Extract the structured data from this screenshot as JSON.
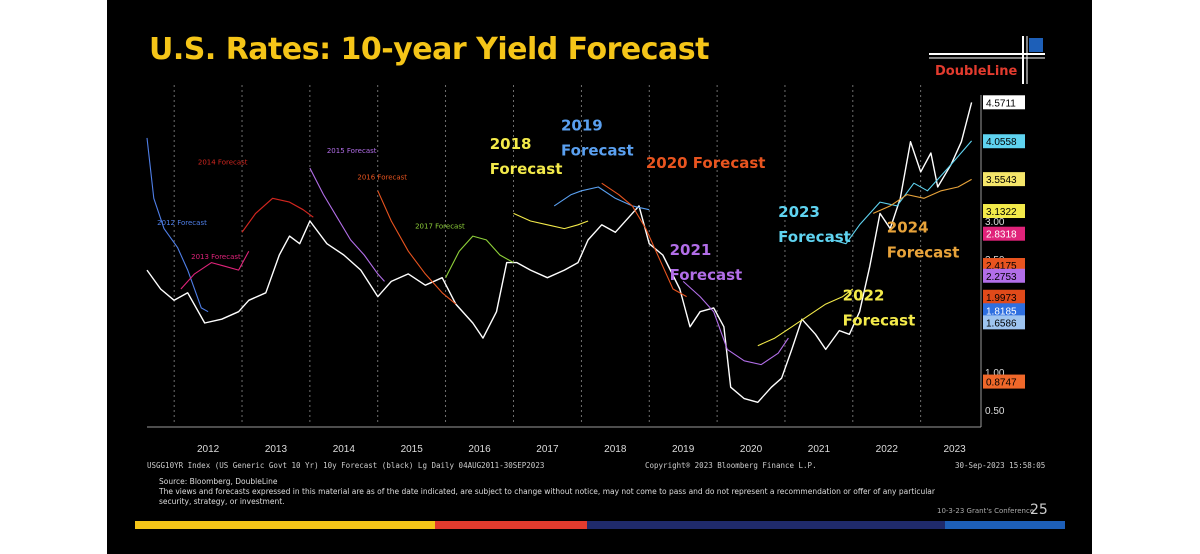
{
  "slide": {
    "title": "U.S. Rates: 10-year Yield Forecast",
    "logo_text": "DoubleLine",
    "source_line": "Source: Bloomberg, DoubleLine",
    "disclaimer_1": "The views and forecasts expressed in this material are as of the date indicated, are subject to change without notice, may not come to pass and do not represent a recommendation or offer of any particular",
    "disclaimer_2": "security, strategy, or investment.",
    "conference": "10-3-23 Grant's Conference",
    "page_number": "25",
    "colors": {
      "title": "#f5c518",
      "logo": "#e23b2e",
      "bar_yellow": "#f5c518",
      "bar_red": "#e23b2e",
      "bar_navy": "#1f2a6b",
      "bar_blue": "#1d5fb8"
    }
  },
  "chart_data": {
    "type": "line",
    "title": "",
    "bloomberg_caption_left": "USGG10YR Index (US Generic Govt 10 Yr) 10y Forecast (black) Lg  Daily 04AUG2011-30SEP2023",
    "bloomberg_caption_center": "Copyright® 2023 Bloomberg Finance L.P.",
    "bloomberg_caption_right": "30-Sep-2023 15:58:05",
    "x_tick_labels": [
      "2012",
      "2013",
      "2014",
      "2015",
      "2016",
      "2017",
      "2018",
      "2019",
      "2020",
      "2021",
      "2022",
      "2023"
    ],
    "y_tick_labels": [
      "3.00",
      "2.50",
      "1.00",
      "0.50"
    ],
    "ylim": [
      0.3,
      4.8
    ],
    "xlim": [
      2011.6,
      2023.8
    ],
    "grid": "vertical dashed at year boundaries",
    "last_values": [
      {
        "label": "4.5711",
        "bg": "#ffffff",
        "fg": "#000000",
        "y": 4.5711
      },
      {
        "label": "4.0558",
        "bg": "#5fd3f0",
        "fg": "#000000",
        "y": 4.0558
      },
      {
        "label": "3.5543",
        "bg": "#f5e66a",
        "fg": "#000000",
        "y": 3.5543
      },
      {
        "label": "3.1322",
        "bg": "#f3ea4a",
        "fg": "#000000",
        "y": 3.1322
      },
      {
        "label": "2.8318",
        "bg": "#e0237a",
        "fg": "#ffffff",
        "y": 2.8318
      },
      {
        "label": "2.4175",
        "bg": "#e8541f",
        "fg": "#000000",
        "y": 2.4175
      },
      {
        "label": "2.2753",
        "bg": "#b26ee8",
        "fg": "#000000",
        "y": 2.2753
      },
      {
        "label": "1.9973",
        "bg": "#e04a1a",
        "fg": "#000000",
        "y": 1.9973
      },
      {
        "label": "1.8185",
        "bg": "#2e6fe0",
        "fg": "#ffffff",
        "y": 1.8185
      },
      {
        "label": "1.6586",
        "bg": "#9ec4f0",
        "fg": "#000000",
        "y": 1.6586
      },
      {
        "label": "0.8747",
        "bg": "#f0682a",
        "fg": "#000000",
        "y": 0.8747
      }
    ],
    "annotations": [
      {
        "text": "2012 Forecast",
        "color": "#4f7fe8",
        "x": 2011.75,
        "y": 2.95,
        "size": 7
      },
      {
        "text": "2013 Forecast",
        "color": "#e0237a",
        "x": 2012.25,
        "y": 2.5,
        "size": 7
      },
      {
        "text": "2014 Forecast",
        "color": "#d2261f",
        "x": 2012.35,
        "y": 3.75,
        "size": 7
      },
      {
        "text": "2015 Forecast",
        "color": "#b26ee8",
        "x": 2014.25,
        "y": 3.9,
        "size": 7
      },
      {
        "text": "2016 Forecast",
        "color": "#e8541f",
        "x": 2014.7,
        "y": 3.55,
        "size": 7
      },
      {
        "text": "2017 Forecast",
        "color": "#8fd13a",
        "x": 2015.55,
        "y": 2.9,
        "size": 7
      },
      {
        "text": "2018",
        "color": "#f3ea4a",
        "x": 2016.65,
        "y": 3.95,
        "size": 15
      },
      {
        "text": "Forecast",
        "color": "#f3ea4a",
        "x": 2016.65,
        "y": 3.62,
        "size": 15
      },
      {
        "text": "2019",
        "color": "#5aa0f0",
        "x": 2017.7,
        "y": 4.2,
        "size": 15
      },
      {
        "text": "Forecast",
        "color": "#5aa0f0",
        "x": 2017.7,
        "y": 3.87,
        "size": 15
      },
      {
        "text": "2020 Forecast",
        "color": "#e8541f",
        "x": 2018.95,
        "y": 3.7,
        "size": 15
      },
      {
        "text": "2021",
        "color": "#b26ee8",
        "x": 2019.3,
        "y": 2.55,
        "size": 15
      },
      {
        "text": "Forecast",
        "color": "#b26ee8",
        "x": 2019.3,
        "y": 2.22,
        "size": 15
      },
      {
        "text": "2023",
        "color": "#5fd3f0",
        "x": 2020.9,
        "y": 3.05,
        "size": 15
      },
      {
        "text": "Forecast",
        "color": "#5fd3f0",
        "x": 2020.9,
        "y": 2.72,
        "size": 15
      },
      {
        "text": "2024",
        "color": "#e8a33a",
        "x": 2022.5,
        "y": 2.85,
        "size": 15
      },
      {
        "text": "Forecast",
        "color": "#e8a33a",
        "x": 2022.5,
        "y": 2.52,
        "size": 15
      },
      {
        "text": "2022",
        "color": "#f3ea4a",
        "x": 2021.85,
        "y": 1.95,
        "size": 15
      },
      {
        "text": "Forecast",
        "color": "#f3ea4a",
        "x": 2021.85,
        "y": 1.62,
        "size": 15
      }
    ],
    "series": [
      {
        "color": "#ffffff",
        "width": 1.4,
        "points": [
          [
            2011.6,
            2.35
          ],
          [
            2011.8,
            2.1
          ],
          [
            2012.0,
            1.95
          ],
          [
            2012.2,
            2.05
          ],
          [
            2012.45,
            1.65
          ],
          [
            2012.7,
            1.7
          ],
          [
            2012.95,
            1.8
          ],
          [
            2013.1,
            1.95
          ],
          [
            2013.35,
            2.05
          ],
          [
            2013.55,
            2.55
          ],
          [
            2013.7,
            2.8
          ],
          [
            2013.85,
            2.7
          ],
          [
            2014.0,
            3.0
          ],
          [
            2014.25,
            2.7
          ],
          [
            2014.5,
            2.55
          ],
          [
            2014.75,
            2.35
          ],
          [
            2015.0,
            2.0
          ],
          [
            2015.2,
            2.2
          ],
          [
            2015.45,
            2.3
          ],
          [
            2015.7,
            2.15
          ],
          [
            2015.95,
            2.25
          ],
          [
            2016.15,
            1.9
          ],
          [
            2016.4,
            1.65
          ],
          [
            2016.55,
            1.45
          ],
          [
            2016.75,
            1.8
          ],
          [
            2016.9,
            2.45
          ],
          [
            2017.05,
            2.45
          ],
          [
            2017.25,
            2.35
          ],
          [
            2017.5,
            2.25
          ],
          [
            2017.75,
            2.35
          ],
          [
            2017.95,
            2.45
          ],
          [
            2018.1,
            2.75
          ],
          [
            2018.3,
            2.95
          ],
          [
            2018.5,
            2.85
          ],
          [
            2018.7,
            3.05
          ],
          [
            2018.85,
            3.2
          ],
          [
            2019.0,
            2.7
          ],
          [
            2019.2,
            2.55
          ],
          [
            2019.45,
            2.1
          ],
          [
            2019.6,
            1.6
          ],
          [
            2019.75,
            1.8
          ],
          [
            2019.95,
            1.85
          ],
          [
            2020.1,
            1.6
          ],
          [
            2020.2,
            0.8
          ],
          [
            2020.4,
            0.65
          ],
          [
            2020.6,
            0.6
          ],
          [
            2020.8,
            0.8
          ],
          [
            2020.95,
            0.92
          ],
          [
            2021.1,
            1.3
          ],
          [
            2021.25,
            1.7
          ],
          [
            2021.45,
            1.5
          ],
          [
            2021.6,
            1.3
          ],
          [
            2021.8,
            1.55
          ],
          [
            2021.95,
            1.5
          ],
          [
            2022.1,
            1.8
          ],
          [
            2022.25,
            2.4
          ],
          [
            2022.4,
            3.1
          ],
          [
            2022.55,
            2.9
          ],
          [
            2022.7,
            3.3
          ],
          [
            2022.85,
            4.05
          ],
          [
            2023.0,
            3.65
          ],
          [
            2023.15,
            3.9
          ],
          [
            2023.25,
            3.45
          ],
          [
            2023.45,
            3.75
          ],
          [
            2023.6,
            4.05
          ],
          [
            2023.75,
            4.57
          ]
        ]
      },
      {
        "color": "#4f7fe8",
        "width": 1.1,
        "points": [
          [
            2011.6,
            4.1
          ],
          [
            2011.7,
            3.3
          ],
          [
            2011.85,
            2.9
          ],
          [
            2012.05,
            2.65
          ],
          [
            2012.2,
            2.35
          ],
          [
            2012.4,
            1.85
          ],
          [
            2012.5,
            1.8
          ]
        ]
      },
      {
        "color": "#e0237a",
        "width": 1.1,
        "points": [
          [
            2012.1,
            2.1
          ],
          [
            2012.3,
            2.3
          ],
          [
            2012.55,
            2.45
          ],
          [
            2012.75,
            2.4
          ],
          [
            2012.95,
            2.35
          ],
          [
            2013.1,
            2.6
          ]
        ]
      },
      {
        "color": "#d2261f",
        "width": 1.2,
        "points": [
          [
            2013.0,
            2.85
          ],
          [
            2013.2,
            3.1
          ],
          [
            2013.45,
            3.3
          ],
          [
            2013.7,
            3.25
          ],
          [
            2013.9,
            3.15
          ],
          [
            2014.05,
            3.05
          ]
        ]
      },
      {
        "color": "#b26ee8",
        "width": 1.1,
        "points": [
          [
            2014.0,
            3.7
          ],
          [
            2014.2,
            3.35
          ],
          [
            2014.4,
            3.05
          ],
          [
            2014.6,
            2.75
          ],
          [
            2014.8,
            2.55
          ],
          [
            2015.0,
            2.3
          ],
          [
            2015.1,
            2.2
          ]
        ]
      },
      {
        "color": "#e8541f",
        "width": 1.1,
        "points": [
          [
            2015.0,
            3.4
          ],
          [
            2015.2,
            3.0
          ],
          [
            2015.45,
            2.6
          ],
          [
            2015.7,
            2.3
          ],
          [
            2015.95,
            2.05
          ],
          [
            2016.15,
            1.9
          ]
        ]
      },
      {
        "color": "#8fd13a",
        "width": 1.1,
        "points": [
          [
            2016.0,
            2.25
          ],
          [
            2016.2,
            2.6
          ],
          [
            2016.4,
            2.8
          ],
          [
            2016.6,
            2.75
          ],
          [
            2016.8,
            2.55
          ],
          [
            2017.0,
            2.45
          ]
        ]
      },
      {
        "color": "#f3ea4a",
        "width": 1.1,
        "points": [
          [
            2017.0,
            3.1
          ],
          [
            2017.25,
            3.0
          ],
          [
            2017.5,
            2.95
          ],
          [
            2017.75,
            2.9
          ],
          [
            2017.95,
            2.95
          ],
          [
            2018.1,
            3.0
          ]
        ]
      },
      {
        "color": "#5aa0f0",
        "width": 1.1,
        "points": [
          [
            2017.6,
            3.2
          ],
          [
            2017.85,
            3.35
          ],
          [
            2018.0,
            3.4
          ],
          [
            2018.25,
            3.45
          ],
          [
            2018.5,
            3.3
          ],
          [
            2018.75,
            3.2
          ],
          [
            2019.0,
            3.15
          ]
        ]
      },
      {
        "color": "#e8541f",
        "width": 1.1,
        "points": [
          [
            2018.3,
            3.5
          ],
          [
            2018.55,
            3.35
          ],
          [
            2018.75,
            3.2
          ],
          [
            2018.95,
            2.9
          ],
          [
            2019.15,
            2.5
          ],
          [
            2019.35,
            2.1
          ],
          [
            2019.55,
            2.0
          ]
        ]
      },
      {
        "color": "#b26ee8",
        "width": 1.1,
        "points": [
          [
            2019.5,
            2.2
          ],
          [
            2019.75,
            2.0
          ],
          [
            2019.95,
            1.8
          ],
          [
            2020.15,
            1.3
          ],
          [
            2020.4,
            1.15
          ],
          [
            2020.65,
            1.1
          ],
          [
            2020.9,
            1.25
          ],
          [
            2021.05,
            1.45
          ]
        ]
      },
      {
        "color": "#f3ea4a",
        "width": 1.1,
        "points": [
          [
            2020.6,
            1.35
          ],
          [
            2020.85,
            1.45
          ],
          [
            2021.1,
            1.6
          ],
          [
            2021.35,
            1.75
          ],
          [
            2021.6,
            1.9
          ],
          [
            2021.85,
            2.0
          ],
          [
            2022.0,
            2.1
          ]
        ]
      },
      {
        "color": "#5fd3f0",
        "width": 1.1,
        "points": [
          [
            2021.7,
            2.75
          ],
          [
            2021.9,
            2.7
          ],
          [
            2022.1,
            2.95
          ],
          [
            2022.4,
            3.25
          ],
          [
            2022.65,
            3.2
          ],
          [
            2022.9,
            3.5
          ],
          [
            2023.1,
            3.4
          ],
          [
            2023.4,
            3.7
          ],
          [
            2023.75,
            4.06
          ]
        ]
      },
      {
        "color": "#e8a33a",
        "width": 1.1,
        "points": [
          [
            2022.3,
            3.1
          ],
          [
            2022.55,
            3.2
          ],
          [
            2022.8,
            3.35
          ],
          [
            2023.05,
            3.3
          ],
          [
            2023.3,
            3.4
          ],
          [
            2023.55,
            3.45
          ],
          [
            2023.75,
            3.55
          ]
        ]
      }
    ]
  }
}
